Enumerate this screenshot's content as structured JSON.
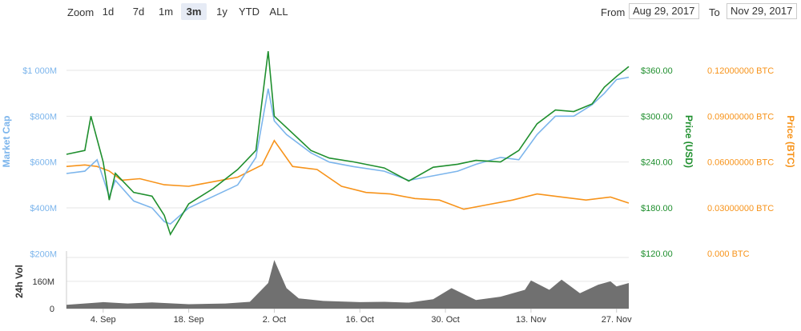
{
  "toolbar": {
    "zoom_label": "Zoom",
    "zoom_buttons": [
      "1d",
      "7d",
      "1m",
      "3m",
      "1y",
      "YTD",
      "ALL"
    ],
    "active_zoom": "3m",
    "from_label": "From",
    "from_value": "Aug 29, 2017",
    "to_label": "To",
    "to_value": "Nov 29, 2017"
  },
  "colors": {
    "market_cap": "#7cb5ec",
    "price_usd": "#1f8f2e",
    "price_btc": "#f7931a",
    "volume": "#707070",
    "grid": "#e6e6e6"
  },
  "chart_data": {
    "type": "line",
    "axes": {
      "left_title": "Market Cap",
      "left_ticks": [
        "$200M",
        "$400M",
        "$600M",
        "$800M",
        "$1 000M"
      ],
      "left_range": [
        200,
        1000
      ],
      "usd_title": "Price (USD)",
      "usd_ticks": [
        "$120.00",
        "$180.00",
        "$240.00",
        "$300.00",
        "$360.00"
      ],
      "usd_range": [
        120,
        360
      ],
      "btc_title": "Price (BTC)",
      "btc_ticks": [
        "0.000 BTC",
        "0.03000000 BTC",
        "0.06000000 BTC",
        "0.09000000 BTC",
        "0.12000000 BTC"
      ],
      "btc_range": [
        0,
        0.12
      ],
      "x_ticks": [
        "4. Sep",
        "18. Sep",
        "2. Oct",
        "16. Oct",
        "30. Oct",
        "13. Nov",
        "27. Nov"
      ],
      "volume_title": "24h Vol",
      "volume_ticks": [
        "0",
        "160M"
      ],
      "volume_range": [
        0,
        300
      ]
    },
    "series": [
      {
        "name": "Market Cap",
        "axis": "left",
        "x": [
          "2017-08-29",
          "2017-09-01",
          "2017-09-03",
          "2017-09-05",
          "2017-09-06",
          "2017-09-09",
          "2017-09-12",
          "2017-09-14",
          "2017-09-15",
          "2017-09-18",
          "2017-09-22",
          "2017-09-26",
          "2017-09-29",
          "2017-10-01",
          "2017-10-02",
          "2017-10-04",
          "2017-10-08",
          "2017-10-11",
          "2017-10-15",
          "2017-10-20",
          "2017-10-24",
          "2017-10-28",
          "2017-11-01",
          "2017-11-04",
          "2017-11-08",
          "2017-11-11",
          "2017-11-14",
          "2017-11-17",
          "2017-11-20",
          "2017-11-23",
          "2017-11-25",
          "2017-11-27",
          "2017-11-29"
        ],
        "values": [
          550,
          560,
          610,
          450,
          520,
          430,
          400,
          340,
          330,
          400,
          450,
          500,
          620,
          920,
          780,
          720,
          640,
          600,
          580,
          560,
          520,
          540,
          560,
          590,
          620,
          610,
          720,
          800,
          800,
          850,
          900,
          960,
          970
        ]
      },
      {
        "name": "Price (USD)",
        "axis": "usd",
        "x": [
          "2017-08-29",
          "2017-09-01",
          "2017-09-02",
          "2017-09-04",
          "2017-09-05",
          "2017-09-06",
          "2017-09-09",
          "2017-09-12",
          "2017-09-14",
          "2017-09-15",
          "2017-09-18",
          "2017-09-22",
          "2017-09-26",
          "2017-09-29",
          "2017-10-01",
          "2017-10-02",
          "2017-10-04",
          "2017-10-08",
          "2017-10-11",
          "2017-10-15",
          "2017-10-20",
          "2017-10-24",
          "2017-10-28",
          "2017-11-01",
          "2017-11-04",
          "2017-11-08",
          "2017-11-11",
          "2017-11-14",
          "2017-11-17",
          "2017-11-20",
          "2017-11-23",
          "2017-11-25",
          "2017-11-27",
          "2017-11-29"
        ],
        "values": [
          250,
          255,
          300,
          240,
          190,
          225,
          200,
          195,
          170,
          145,
          185,
          205,
          230,
          255,
          385,
          300,
          285,
          255,
          245,
          240,
          232,
          215,
          233,
          237,
          242,
          240,
          255,
          290,
          308,
          306,
          316,
          338,
          352,
          365
        ]
      },
      {
        "name": "Price (BTC)",
        "axis": "btc",
        "x": [
          "2017-08-29",
          "2017-09-01",
          "2017-09-03",
          "2017-09-05",
          "2017-09-07",
          "2017-09-10",
          "2017-09-14",
          "2017-09-18",
          "2017-09-22",
          "2017-09-26",
          "2017-09-30",
          "2017-10-02",
          "2017-10-05",
          "2017-10-09",
          "2017-10-13",
          "2017-10-17",
          "2017-10-21",
          "2017-10-25",
          "2017-10-29",
          "2017-11-02",
          "2017-11-06",
          "2017-11-10",
          "2017-11-14",
          "2017-11-18",
          "2017-11-22",
          "2017-11-26",
          "2017-11-29"
        ],
        "values": [
          0.057,
          0.058,
          0.057,
          0.054,
          0.048,
          0.049,
          0.045,
          0.044,
          0.047,
          0.05,
          0.058,
          0.074,
          0.057,
          0.055,
          0.044,
          0.04,
          0.039,
          0.036,
          0.035,
          0.029,
          0.032,
          0.035,
          0.039,
          0.037,
          0.035,
          0.037,
          0.033
        ]
      },
      {
        "name": "24h Vol",
        "axis": "volume",
        "x": [
          "2017-08-29",
          "2017-09-04",
          "2017-09-08",
          "2017-09-12",
          "2017-09-18",
          "2017-09-24",
          "2017-09-28",
          "2017-10-01",
          "2017-10-02",
          "2017-10-04",
          "2017-10-06",
          "2017-10-10",
          "2017-10-16",
          "2017-10-20",
          "2017-10-24",
          "2017-10-28",
          "2017-10-31",
          "2017-11-04",
          "2017-11-08",
          "2017-11-12",
          "2017-11-13",
          "2017-11-16",
          "2017-11-18",
          "2017-11-21",
          "2017-11-24",
          "2017-11-26",
          "2017-11-27",
          "2017-11-29"
        ],
        "values": [
          22,
          38,
          30,
          36,
          26,
          30,
          40,
          150,
          285,
          120,
          60,
          45,
          38,
          40,
          35,
          55,
          120,
          50,
          70,
          110,
          165,
          110,
          170,
          90,
          140,
          160,
          130,
          150
        ]
      }
    ]
  }
}
